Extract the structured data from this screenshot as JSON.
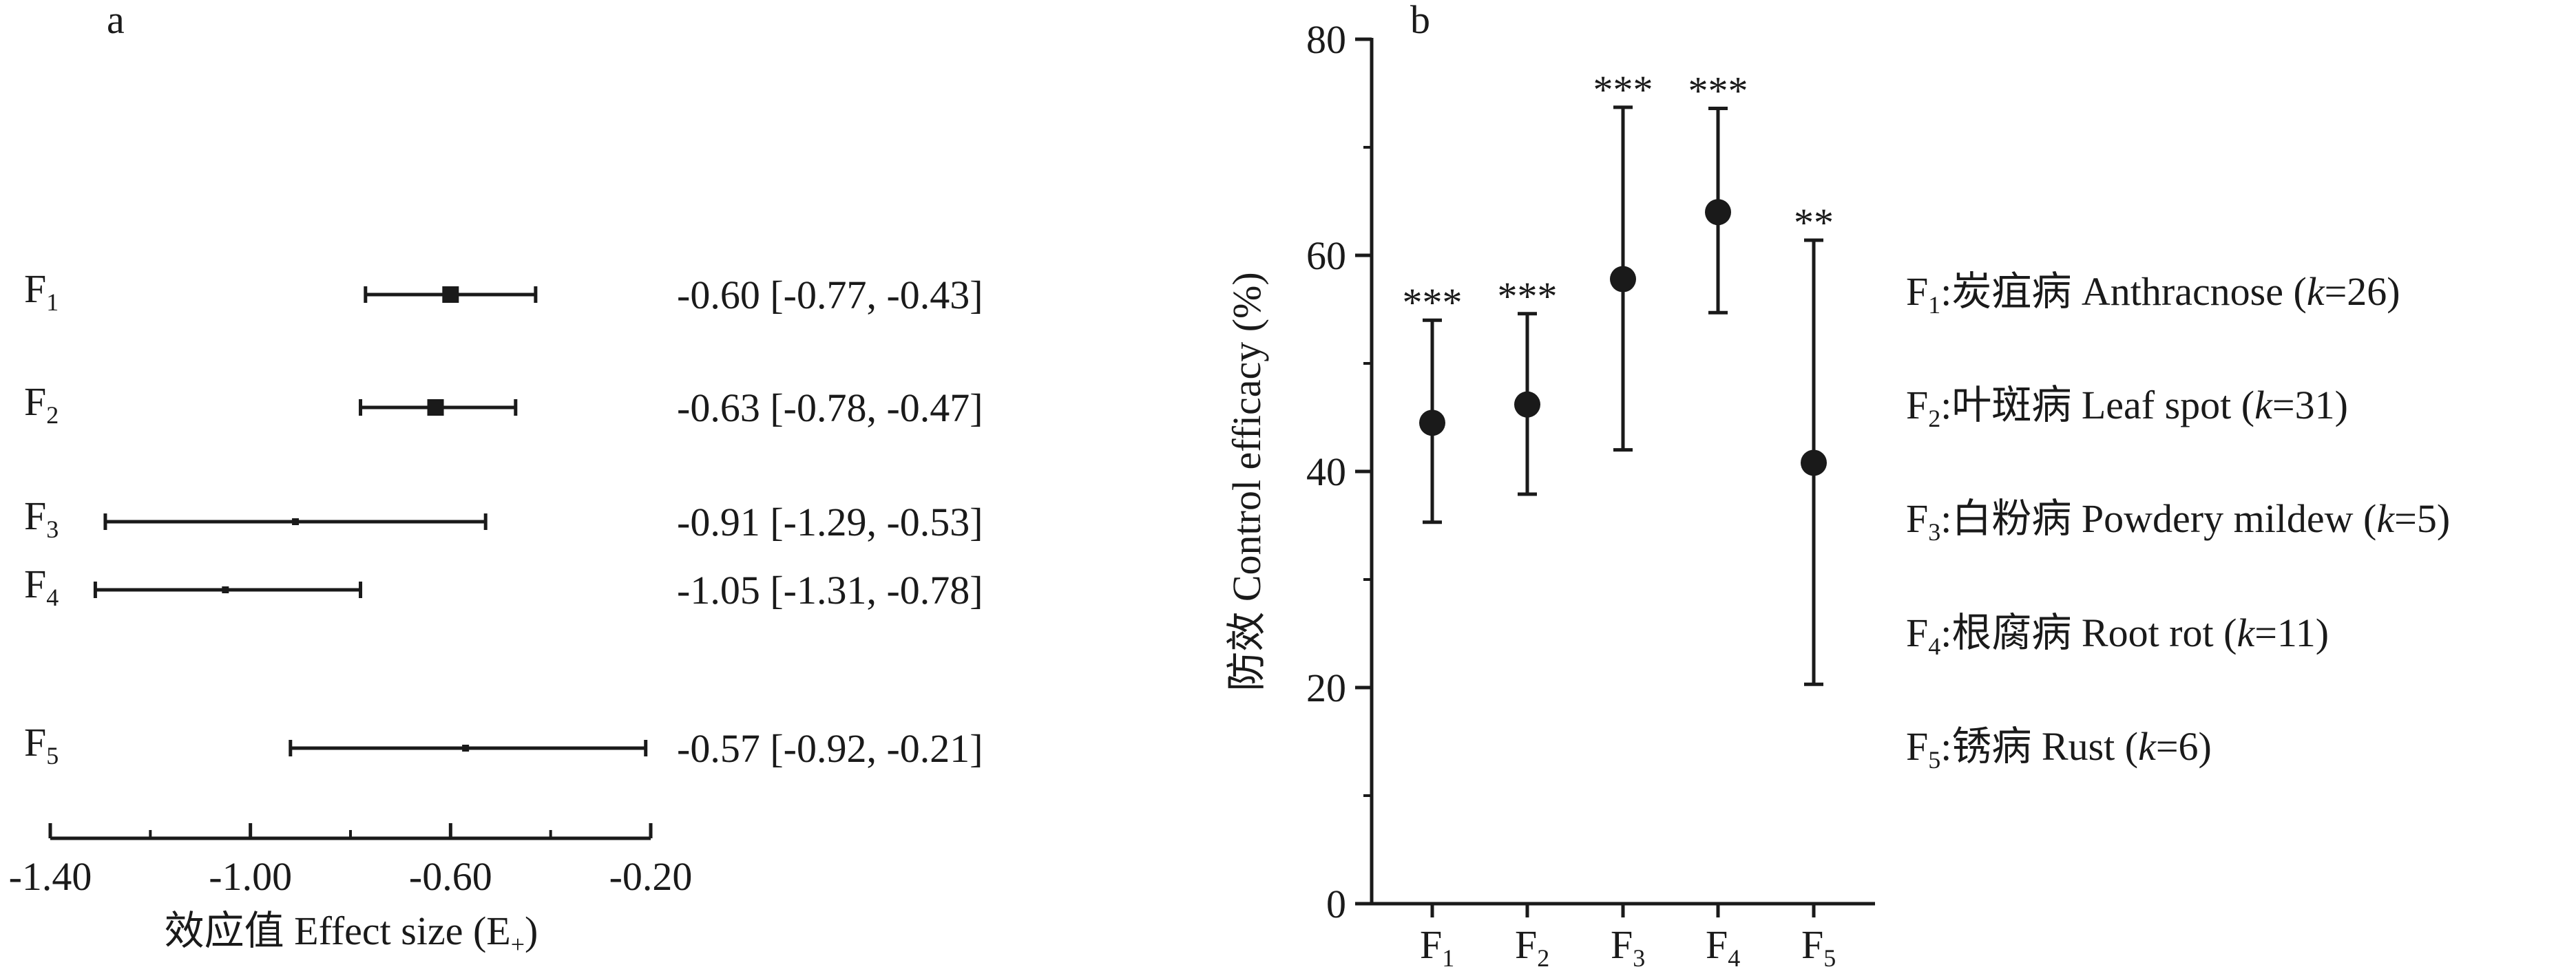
{
  "chart_data": [
    {
      "id": "a",
      "type": "forest",
      "panel_label": "a",
      "xlabel": "效应值 Effect size (E+)",
      "xlabel_parts": {
        "main": "效应值 Effect size (E",
        "sub": "+",
        "end": ")"
      },
      "xlim": [
        -1.4,
        -0.2
      ],
      "xticks": [
        -1.4,
        -1.0,
        -0.6,
        -0.2
      ],
      "xtick_labels": [
        "-1.40",
        "-1.00",
        "-0.60",
        "-0.20"
      ],
      "rows": [
        {
          "label": "F",
          "sub": "1",
          "mean": -0.6,
          "low": -0.77,
          "high": -0.43,
          "text": "-0.60 [-0.77, -0.43]",
          "marker_weight": "large"
        },
        {
          "label": "F",
          "sub": "2",
          "mean": -0.63,
          "low": -0.78,
          "high": -0.47,
          "text": "-0.63 [-0.78, -0.47]",
          "marker_weight": "large"
        },
        {
          "label": "F",
          "sub": "3",
          "mean": -0.91,
          "low": -1.29,
          "high": -0.53,
          "text": "-0.91 [-1.29, -0.53]",
          "marker_weight": "small"
        },
        {
          "label": "F",
          "sub": "4",
          "mean": -1.05,
          "low": -1.31,
          "high": -0.78,
          "text": "-1.05 [-1.31, -0.78]",
          "marker_weight": "small"
        },
        {
          "label": "F",
          "sub": "5",
          "mean": -0.57,
          "low": -0.92,
          "high": -0.21,
          "text": "-0.57 [-0.92, -0.21]",
          "marker_weight": "small"
        }
      ]
    },
    {
      "id": "b",
      "type": "scatter-errorbar",
      "panel_label": "b",
      "ylabel": "防效 Control efficacy (%)",
      "ylim": [
        0,
        80
      ],
      "yticks": [
        0,
        20,
        40,
        60,
        80
      ],
      "ytick_labels": [
        "0",
        "20",
        "40",
        "60",
        "80"
      ],
      "categories": [
        {
          "label": "F",
          "sub": "1"
        },
        {
          "label": "F",
          "sub": "2"
        },
        {
          "label": "F",
          "sub": "3"
        },
        {
          "label": "F",
          "sub": "4"
        },
        {
          "label": "F",
          "sub": "5"
        }
      ],
      "values": [
        44.5,
        46.2,
        57.8,
        64.0,
        40.8
      ],
      "lower": [
        35.3,
        37.9,
        42.0,
        54.7,
        20.3
      ],
      "upper": [
        54.0,
        54.6,
        73.7,
        73.6,
        61.4
      ],
      "significance": [
        "***",
        "***",
        "***",
        "***",
        "**"
      ]
    }
  ],
  "legend": [
    {
      "label": "F",
      "sub": "1",
      "text": ":炭疽病 Anthracnose (",
      "k": "k",
      "end": "=26)"
    },
    {
      "label": "F",
      "sub": "2",
      "text": ":叶斑病  Leaf spot (",
      "k": "k",
      "end": "=31)"
    },
    {
      "label": "F",
      "sub": "3",
      "text": ":白粉病 Powdery mildew (",
      "k": "k",
      "end": "=5)"
    },
    {
      "label": "F",
      "sub": "4",
      "text": ":根腐病 Root rot (",
      "k": "k",
      "end": "=11)"
    },
    {
      "label": "F",
      "sub": "5",
      "text": ":锈病 Rust (",
      "k": "k",
      "end": "=6)"
    }
  ]
}
